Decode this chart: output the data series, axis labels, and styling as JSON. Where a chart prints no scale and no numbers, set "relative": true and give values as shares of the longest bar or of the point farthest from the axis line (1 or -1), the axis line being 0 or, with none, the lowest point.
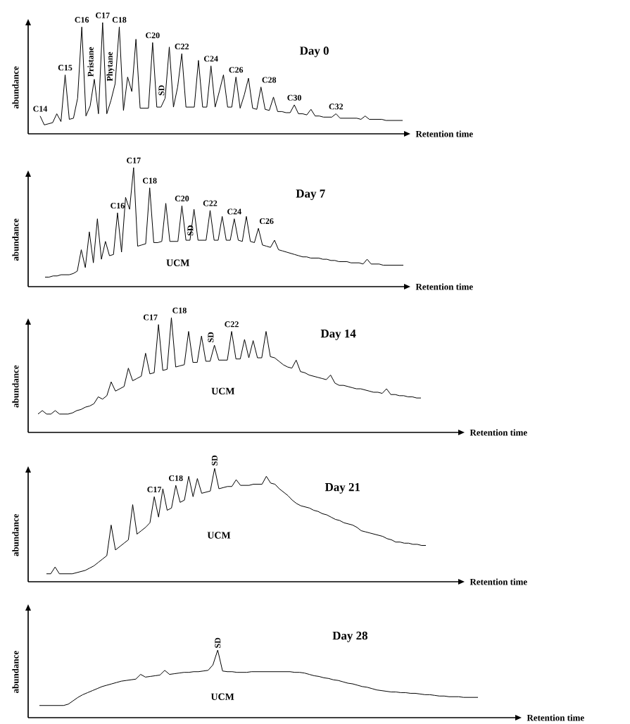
{
  "chart_data": [
    {
      "type": "line",
      "relative": true,
      "title": "Day 0",
      "xlabel": "Retention time",
      "ylabel": "abundance",
      "annotations": [
        "C14",
        "C15",
        "C16",
        "C17",
        "C18",
        "Pristane",
        "Phytane",
        "C20",
        "SD",
        "C22",
        "C24",
        "C26",
        "C28",
        "C30",
        "C32"
      ],
      "categories": [
        null,
        null,
        null,
        null,
        null,
        null,
        null,
        null,
        null,
        null,
        null,
        null,
        null,
        null,
        null,
        null,
        null,
        null,
        null,
        null,
        null,
        null,
        null,
        null,
        null,
        null,
        null,
        null,
        null,
        null,
        null,
        null,
        null,
        null,
        null,
        null,
        null,
        null,
        null,
        null,
        null,
        null,
        null,
        null,
        null,
        null,
        null,
        null,
        null,
        null,
        null,
        null,
        null,
        null,
        null,
        null,
        null,
        null,
        null,
        null,
        null,
        null,
        null,
        null,
        null,
        null,
        null,
        null,
        null,
        null,
        null,
        null,
        null,
        null,
        null,
        null,
        null,
        null,
        null,
        null,
        null,
        null,
        null,
        null,
        null,
        null,
        null,
        null
      ],
      "series": [
        {
          "color": "#000000",
          "values": [
            0.16,
            0.08,
            0.09,
            0.1,
            0.18,
            0.11,
            0.53,
            0.13,
            0.14,
            0.32,
            0.96,
            0.16,
            0.25,
            0.49,
            0.18,
            1,
            0.18,
            0.3,
            0.45,
            0.96,
            0.21,
            0.51,
            0.38,
            0.85,
            0.23,
            0.23,
            0.23,
            0.82,
            0.24,
            0.24,
            0.32,
            0.78,
            0.24,
            0.42,
            0.72,
            0.24,
            0.24,
            0.24,
            0.66,
            0.24,
            0.24,
            0.61,
            0.24,
            0.38,
            0.53,
            0.24,
            0.24,
            0.51,
            0.23,
            0.35,
            0.5,
            0.23,
            0.22,
            0.42,
            0.22,
            0.21,
            0.33,
            0.2,
            0.2,
            0.19,
            0.19,
            0.26,
            0.18,
            0.18,
            0.17,
            0.22,
            0.16,
            0.16,
            0.15,
            0.15,
            0.15,
            0.18,
            0.14,
            0.14,
            0.14,
            0.14,
            0.14,
            0.13,
            0.16,
            0.13,
            0.13,
            0.13,
            0.13,
            0.12,
            0.12,
            0.12,
            0.12,
            0.12
          ]
        }
      ]
    },
    {
      "type": "line",
      "relative": true,
      "title": "Day 7",
      "xlabel": "Retention time",
      "ylabel": "abundance",
      "annotations": [
        "C16",
        "C17",
        "C18",
        "C20",
        "SD",
        "C22",
        "C24",
        "C26",
        "UCM"
      ],
      "categories": [
        null,
        null,
        null,
        null,
        null,
        null,
        null,
        null,
        null,
        null,
        null,
        null,
        null,
        null,
        null,
        null,
        null,
        null,
        null,
        null,
        null,
        null,
        null,
        null,
        null,
        null,
        null,
        null,
        null,
        null,
        null,
        null,
        null,
        null,
        null,
        null,
        null,
        null,
        null,
        null,
        null,
        null,
        null,
        null,
        null,
        null,
        null,
        null,
        null,
        null,
        null,
        null,
        null,
        null,
        null,
        null,
        null,
        null,
        null,
        null,
        null,
        null,
        null,
        null,
        null,
        null,
        null,
        null,
        null,
        null,
        null,
        null,
        null,
        null,
        null,
        null,
        null,
        null,
        null,
        null,
        null,
        null,
        null,
        null,
        null,
        null,
        null,
        null,
        null,
        null
      ],
      "series": [
        {
          "color": "#000000",
          "values": [
            0.08,
            0.08,
            0.09,
            0.09,
            0.1,
            0.1,
            0.1,
            0.11,
            0.13,
            0.31,
            0.16,
            0.46,
            0.2,
            0.57,
            0.23,
            0.38,
            0.26,
            0.27,
            0.62,
            0.29,
            0.75,
            0.65,
            1,
            0.34,
            0.35,
            0.36,
            0.83,
            0.37,
            0.37,
            0.38,
            0.7,
            0.38,
            0.38,
            0.38,
            0.68,
            0.39,
            0.39,
            0.65,
            0.39,
            0.39,
            0.39,
            0.64,
            0.39,
            0.39,
            0.59,
            0.39,
            0.39,
            0.57,
            0.39,
            0.38,
            0.59,
            0.38,
            0.37,
            0.49,
            0.35,
            0.34,
            0.33,
            0.39,
            0.31,
            0.3,
            0.29,
            0.28,
            0.27,
            0.26,
            0.25,
            0.25,
            0.24,
            0.24,
            0.24,
            0.23,
            0.23,
            0.22,
            0.22,
            0.21,
            0.21,
            0.21,
            0.2,
            0.2,
            0.2,
            0.19,
            0.23,
            0.19,
            0.19,
            0.19,
            0.18,
            0.18,
            0.18,
            0.18,
            0.18,
            0.18
          ]
        }
      ]
    },
    {
      "type": "line",
      "relative": true,
      "title": "Day 14",
      "xlabel": "Retention time",
      "ylabel": "abundance",
      "annotations": [
        "C17",
        "C18",
        "SD",
        "C22",
        "UCM"
      ],
      "categories": [
        null,
        null,
        null,
        null,
        null,
        null,
        null,
        null,
        null,
        null,
        null,
        null,
        null,
        null,
        null,
        null,
        null,
        null,
        null,
        null,
        null,
        null,
        null,
        null,
        null,
        null,
        null,
        null,
        null,
        null,
        null,
        null,
        null,
        null,
        null,
        null,
        null,
        null,
        null,
        null,
        null,
        null,
        null,
        null,
        null,
        null,
        null,
        null,
        null,
        null,
        null,
        null,
        null,
        null,
        null,
        null,
        null,
        null,
        null,
        null,
        null,
        null,
        null,
        null,
        null,
        null,
        null,
        null,
        null,
        null,
        null,
        null,
        null,
        null,
        null,
        null,
        null,
        null,
        null,
        null,
        null,
        null,
        null,
        null,
        null,
        null,
        null,
        null,
        null,
        null
      ],
      "series": [
        {
          "color": "#000000",
          "values": [
            0.16,
            0.19,
            0.16,
            0.16,
            0.19,
            0.16,
            0.16,
            0.16,
            0.17,
            0.19,
            0.2,
            0.22,
            0.23,
            0.25,
            0.31,
            0.29,
            0.32,
            0.44,
            0.36,
            0.38,
            0.4,
            0.56,
            0.45,
            0.47,
            0.49,
            0.69,
            0.51,
            0.52,
            0.94,
            0.54,
            0.55,
            1,
            0.57,
            0.58,
            0.59,
            0.88,
            0.61,
            0.61,
            0.84,
            0.62,
            0.62,
            0.76,
            0.63,
            0.63,
            0.63,
            0.88,
            0.64,
            0.64,
            0.81,
            0.65,
            0.8,
            0.65,
            0.65,
            0.88,
            0.66,
            0.65,
            0.62,
            0.59,
            0.57,
            0.56,
            0.63,
            0.53,
            0.52,
            0.5,
            0.49,
            0.48,
            0.47,
            0.46,
            0.5,
            0.43,
            0.41,
            0.41,
            0.4,
            0.39,
            0.38,
            0.38,
            0.37,
            0.36,
            0.35,
            0.35,
            0.34,
            0.38,
            0.33,
            0.33,
            0.32,
            0.32,
            0.31,
            0.31,
            0.3,
            0.3
          ]
        }
      ]
    },
    {
      "type": "line",
      "relative": true,
      "title": "Day 21",
      "xlabel": "Retention time",
      "ylabel": "abundance",
      "annotations": [
        "C17",
        "C18",
        "SD",
        "UCM"
      ],
      "categories": [
        null,
        null,
        null,
        null,
        null,
        null,
        null,
        null,
        null,
        null,
        null,
        null,
        null,
        null,
        null,
        null,
        null,
        null,
        null,
        null,
        null,
        null,
        null,
        null,
        null,
        null,
        null,
        null,
        null,
        null,
        null,
        null,
        null,
        null,
        null,
        null,
        null,
        null,
        null,
        null,
        null,
        null,
        null,
        null,
        null,
        null,
        null,
        null,
        null,
        null,
        null,
        null,
        null,
        null,
        null,
        null,
        null,
        null,
        null,
        null,
        null,
        null,
        null,
        null,
        null,
        null,
        null,
        null,
        null,
        null,
        null,
        null,
        null,
        null,
        null,
        null,
        null,
        null,
        null,
        null,
        null,
        null,
        null,
        null,
        null,
        null,
        null,
        null,
        null
      ],
      "series": [
        {
          "color": "#000000",
          "values": [
            0.07,
            0.07,
            0.13,
            0.07,
            0.07,
            0.07,
            0.07,
            0.08,
            0.09,
            0.1,
            0.12,
            0.14,
            0.17,
            0.2,
            0.23,
            0.5,
            0.28,
            0.31,
            0.34,
            0.37,
            0.68,
            0.42,
            0.45,
            0.48,
            0.52,
            0.75,
            0.57,
            0.82,
            0.63,
            0.65,
            0.85,
            0.7,
            0.72,
            0.93,
            0.75,
            0.91,
            0.78,
            0.79,
            0.8,
            1,
            0.82,
            0.83,
            0.84,
            0.84,
            0.9,
            0.85,
            0.85,
            0.85,
            0.86,
            0.86,
            0.86,
            0.93,
            0.87,
            0.86,
            0.82,
            0.79,
            0.76,
            0.72,
            0.69,
            0.67,
            0.66,
            0.65,
            0.63,
            0.62,
            0.6,
            0.59,
            0.57,
            0.55,
            0.54,
            0.52,
            0.51,
            0.5,
            0.48,
            0.45,
            0.44,
            0.43,
            0.42,
            0.41,
            0.4,
            0.38,
            0.37,
            0.35,
            0.35,
            0.34,
            0.34,
            0.33,
            0.33,
            0.32,
            0.32
          ]
        }
      ]
    },
    {
      "type": "line",
      "relative": true,
      "title": "Day 28",
      "xlabel": "Retention time",
      "ylabel": "abundance",
      "annotations": [
        "SD",
        "UCM"
      ],
      "categories": [
        null,
        null,
        null,
        null,
        null,
        null,
        null,
        null,
        null,
        null,
        null,
        null,
        null,
        null,
        null,
        null,
        null,
        null,
        null,
        null,
        null,
        null,
        null,
        null,
        null,
        null,
        null,
        null,
        null,
        null,
        null,
        null,
        null,
        null,
        null,
        null,
        null,
        null,
        null,
        null,
        null,
        null,
        null,
        null,
        null,
        null,
        null,
        null,
        null,
        null,
        null,
        null,
        null,
        null,
        null,
        null,
        null,
        null,
        null,
        null,
        null,
        null,
        null,
        null,
        null,
        null,
        null,
        null,
        null,
        null,
        null,
        null,
        null,
        null,
        null,
        null,
        null,
        null,
        null,
        null,
        null,
        null,
        null,
        null,
        null,
        null,
        null,
        null,
        null,
        null,
        null,
        null
      ],
      "series": [
        {
          "color": "#000000",
          "values": [
            0.18,
            0.18,
            0.18,
            0.18,
            0.18,
            0.18,
            0.2,
            0.25,
            0.3,
            0.34,
            0.37,
            0.4,
            0.43,
            0.46,
            0.48,
            0.5,
            0.52,
            0.54,
            0.55,
            0.56,
            0.57,
            0.64,
            0.6,
            0.61,
            0.62,
            0.63,
            0.7,
            0.64,
            0.65,
            0.66,
            0.67,
            0.67,
            0.68,
            0.68,
            0.69,
            0.7,
            0.78,
            1,
            0.69,
            0.68,
            0.68,
            0.67,
            0.67,
            0.67,
            0.68,
            0.68,
            0.68,
            0.68,
            0.68,
            0.68,
            0.68,
            0.68,
            0.68,
            0.67,
            0.67,
            0.66,
            0.64,
            0.62,
            0.61,
            0.59,
            0.58,
            0.56,
            0.55,
            0.53,
            0.51,
            0.5,
            0.48,
            0.46,
            0.45,
            0.43,
            0.41,
            0.4,
            0.39,
            0.38,
            0.38,
            0.37,
            0.37,
            0.36,
            0.36,
            0.35,
            0.34,
            0.34,
            0.33,
            0.32,
            0.32,
            0.31,
            0.31,
            0.31,
            0.3,
            0.3,
            0.3,
            0.3
          ]
        }
      ]
    }
  ]
}
